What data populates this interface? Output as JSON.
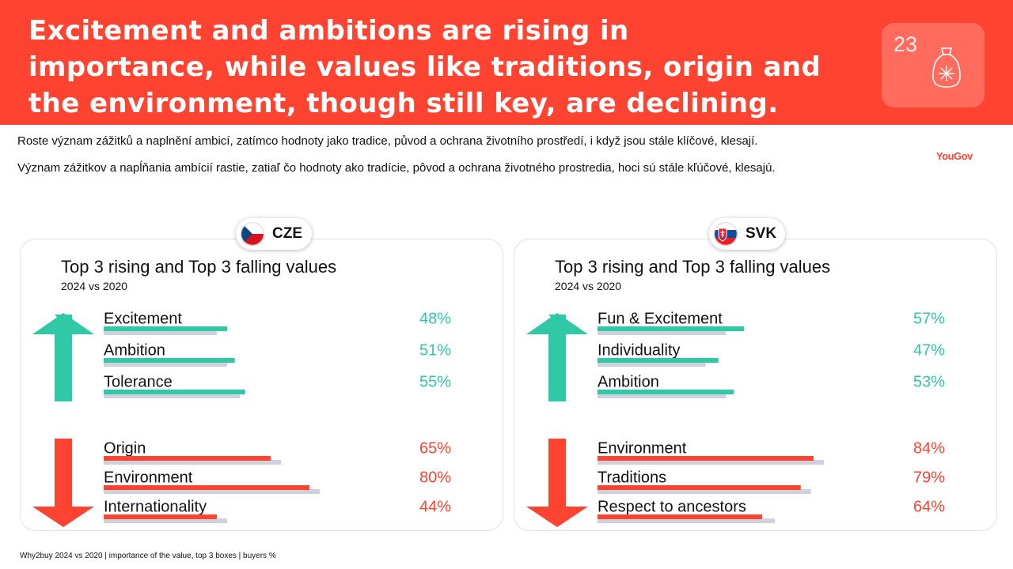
{
  "header": {
    "title_lines": [
      "Excitement and ambitions are rising in",
      "importance, while values like traditions, origin and",
      "the environment, though still key, are declining."
    ],
    "page_number": "23"
  },
  "subtitles": {
    "czech": "Roste význam zážitků a naplnění ambicí, zatímco hodnoty jako tradice, původ a ochrana životního prostředí, i když jsou stále klíčové, klesají.",
    "slovak": "Význam zážitkov a napĺňania ambícií rastie, zatiaľ čo hodnoty ako tradície, pôvod a ochrana životného prostredia, hoci sú stále kľúčové, klesajú."
  },
  "logo": "YouGov",
  "colors": {
    "brand_red": "#ff4331",
    "rising": "#2fc9a6",
    "falling": "#ff4331",
    "comparison": "#cfd2dc"
  },
  "icons": {
    "up": "arrow-up-icon",
    "down": "arrow-down-icon",
    "badge": "bag-icon"
  },
  "chart_data": [
    {
      "country": "CZE",
      "type": "bar",
      "title": "Top 3 rising and Top 3 falling values",
      "subtitle": "2024 vs 2020",
      "xlim": [
        0,
        100
      ],
      "rising": [
        {
          "label": "Excitement",
          "value_label": "48%",
          "value_2024": 48,
          "value_2020": 44
        },
        {
          "label": "Ambition",
          "value_label": "51%",
          "value_2024": 51,
          "value_2020": 48
        },
        {
          "label": "Tolerance",
          "value_label": "55%",
          "value_2024": 55,
          "value_2020": 53
        }
      ],
      "falling": [
        {
          "label": "Origin",
          "value_label": "65%",
          "value_2024": 65,
          "value_2020": 69
        },
        {
          "label": "Environment",
          "value_label": "80%",
          "value_2024": 80,
          "value_2020": 84
        },
        {
          "label": "Internationality",
          "value_label": "44%",
          "value_2024": 44,
          "value_2020": 48
        }
      ]
    },
    {
      "country": "SVK",
      "type": "bar",
      "title": "Top 3 rising and Top 3 falling values",
      "subtitle": "2024 vs 2020",
      "xlim": [
        0,
        100
      ],
      "rising": [
        {
          "label": "Fun & Excitement",
          "value_label": "57%",
          "value_2024": 57,
          "value_2020": 50
        },
        {
          "label": "Individuality",
          "value_label": "47%",
          "value_2024": 47,
          "value_2020": 42
        },
        {
          "label": "Ambition",
          "value_label": "53%",
          "value_2024": 53,
          "value_2020": 50
        }
      ],
      "falling": [
        {
          "label": "Environment",
          "value_label": "84%",
          "value_2024": 84,
          "value_2020": 88
        },
        {
          "label": "Traditions",
          "value_label": "79%",
          "value_2024": 79,
          "value_2020": 83
        },
        {
          "label": "Respect to ancestors",
          "value_label": "64%",
          "value_2024": 64,
          "value_2020": 69
        }
      ]
    }
  ],
  "footer": "Why2buy 2024 vs 2020 | importance of the value, top 3 boxes | buyers %"
}
